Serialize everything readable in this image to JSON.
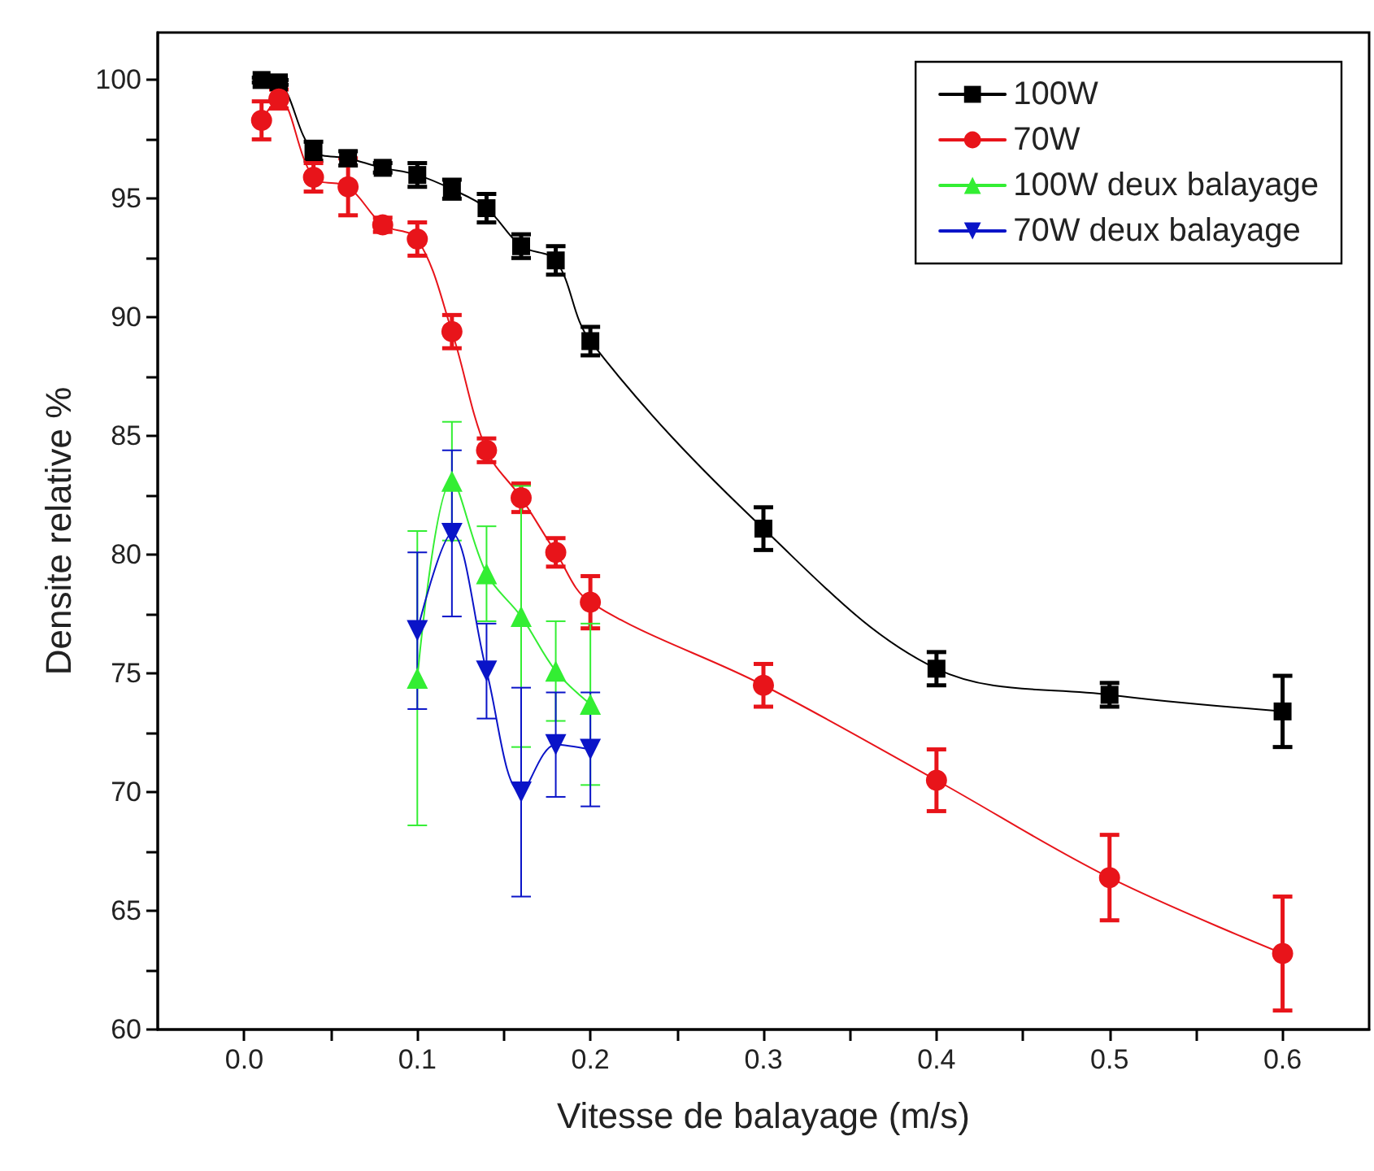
{
  "chart_data": {
    "type": "line",
    "xlabel": "Vitesse de balayage (m/s)",
    "ylabel": "Densite relative %",
    "xlim": [
      -0.05,
      0.65
    ],
    "xticks": [
      {
        "value": 0,
        "label": "0.0"
      },
      {
        "value": 0.05,
        "label": null
      },
      {
        "value": 0.1,
        "label": "0.1"
      },
      {
        "value": 0.15,
        "label": null
      },
      {
        "value": 0.2,
        "label": "0.2"
      },
      {
        "value": 0.25,
        "label": null
      },
      {
        "value": 0.3,
        "label": "0.3"
      },
      {
        "value": 0.35,
        "label": null
      },
      {
        "value": 0.4,
        "label": "0.4"
      },
      {
        "value": 0.45,
        "label": null
      },
      {
        "value": 0.5,
        "label": "0.5"
      },
      {
        "value": 0.55,
        "label": null
      },
      {
        "value": 0.6,
        "label": "0.6"
      }
    ],
    "ylim": [
      60,
      102
    ],
    "yticks": [
      60,
      {
        "value": 62.5,
        "label": null
      },
      65,
      {
        "value": 67.5,
        "label": null
      },
      70,
      {
        "value": 72.5,
        "label": null
      },
      75,
      {
        "value": 77.5,
        "label": null
      },
      80,
      {
        "value": 82.5,
        "label": null
      },
      85,
      {
        "value": 87.5,
        "label": null
      },
      90,
      {
        "value": 92.5,
        "label": null
      },
      95,
      {
        "value": 97.5,
        "label": null
      },
      100
    ],
    "grid": false,
    "legend": "top right",
    "line_style": "solid",
    "series": [
      {
        "name": "100W",
        "color": "#000000",
        "marker": "square",
        "x": [
          0.01,
          0.02,
          0.04,
          0.06,
          0.08,
          0.1,
          0.12,
          0.14,
          0.16,
          0.18,
          0.2,
          0.3,
          0.4,
          0.5,
          0.6
        ],
        "values": [
          100.0,
          99.9,
          97.0,
          96.7,
          96.3,
          96.0,
          95.4,
          94.6,
          93.0,
          92.4,
          89.0,
          81.1,
          75.2,
          74.1,
          73.4
        ],
        "errors": [
          0.1,
          0.1,
          0.4,
          0.3,
          0.2,
          0.5,
          0.4,
          0.6,
          0.5,
          0.6,
          0.6,
          0.9,
          0.7,
          0.5,
          1.5
        ]
      },
      {
        "name": "70W",
        "color": "#e8141a",
        "marker": "circle",
        "x": [
          0.01,
          0.02,
          0.04,
          0.06,
          0.08,
          0.1,
          0.12,
          0.14,
          0.16,
          0.18,
          0.2,
          0.3,
          0.4,
          0.5,
          0.6
        ],
        "values": [
          98.3,
          99.2,
          95.9,
          95.5,
          93.9,
          93.3,
          89.4,
          84.4,
          82.4,
          80.1,
          78.0,
          74.5,
          70.5,
          66.4,
          63.2
        ],
        "errors": [
          0.8,
          0.4,
          0.6,
          1.2,
          0.3,
          0.7,
          0.7,
          0.5,
          0.6,
          0.6,
          1.1,
          0.9,
          1.3,
          1.8,
          2.4
        ]
      },
      {
        "name": "100W deux balayage",
        "color": "#33ee33",
        "marker": "triangle",
        "x": [
          0.1,
          0.12,
          0.14,
          0.16,
          0.18,
          0.2
        ],
        "values": [
          74.8,
          83.1,
          79.2,
          77.4,
          75.1,
          73.7
        ],
        "errors": [
          6.2,
          2.5,
          2.0,
          5.5,
          2.1,
          3.4
        ]
      },
      {
        "name": "70W deux balayage",
        "color": "#0a14c8",
        "marker": "triangle-down",
        "x": [
          0.1,
          0.12,
          0.14,
          0.16,
          0.18,
          0.2
        ],
        "values": [
          76.8,
          80.9,
          75.1,
          70.0,
          72.0,
          71.8
        ],
        "errors": [
          3.3,
          3.5,
          2.0,
          4.4,
          2.2,
          2.4
        ]
      }
    ]
  }
}
